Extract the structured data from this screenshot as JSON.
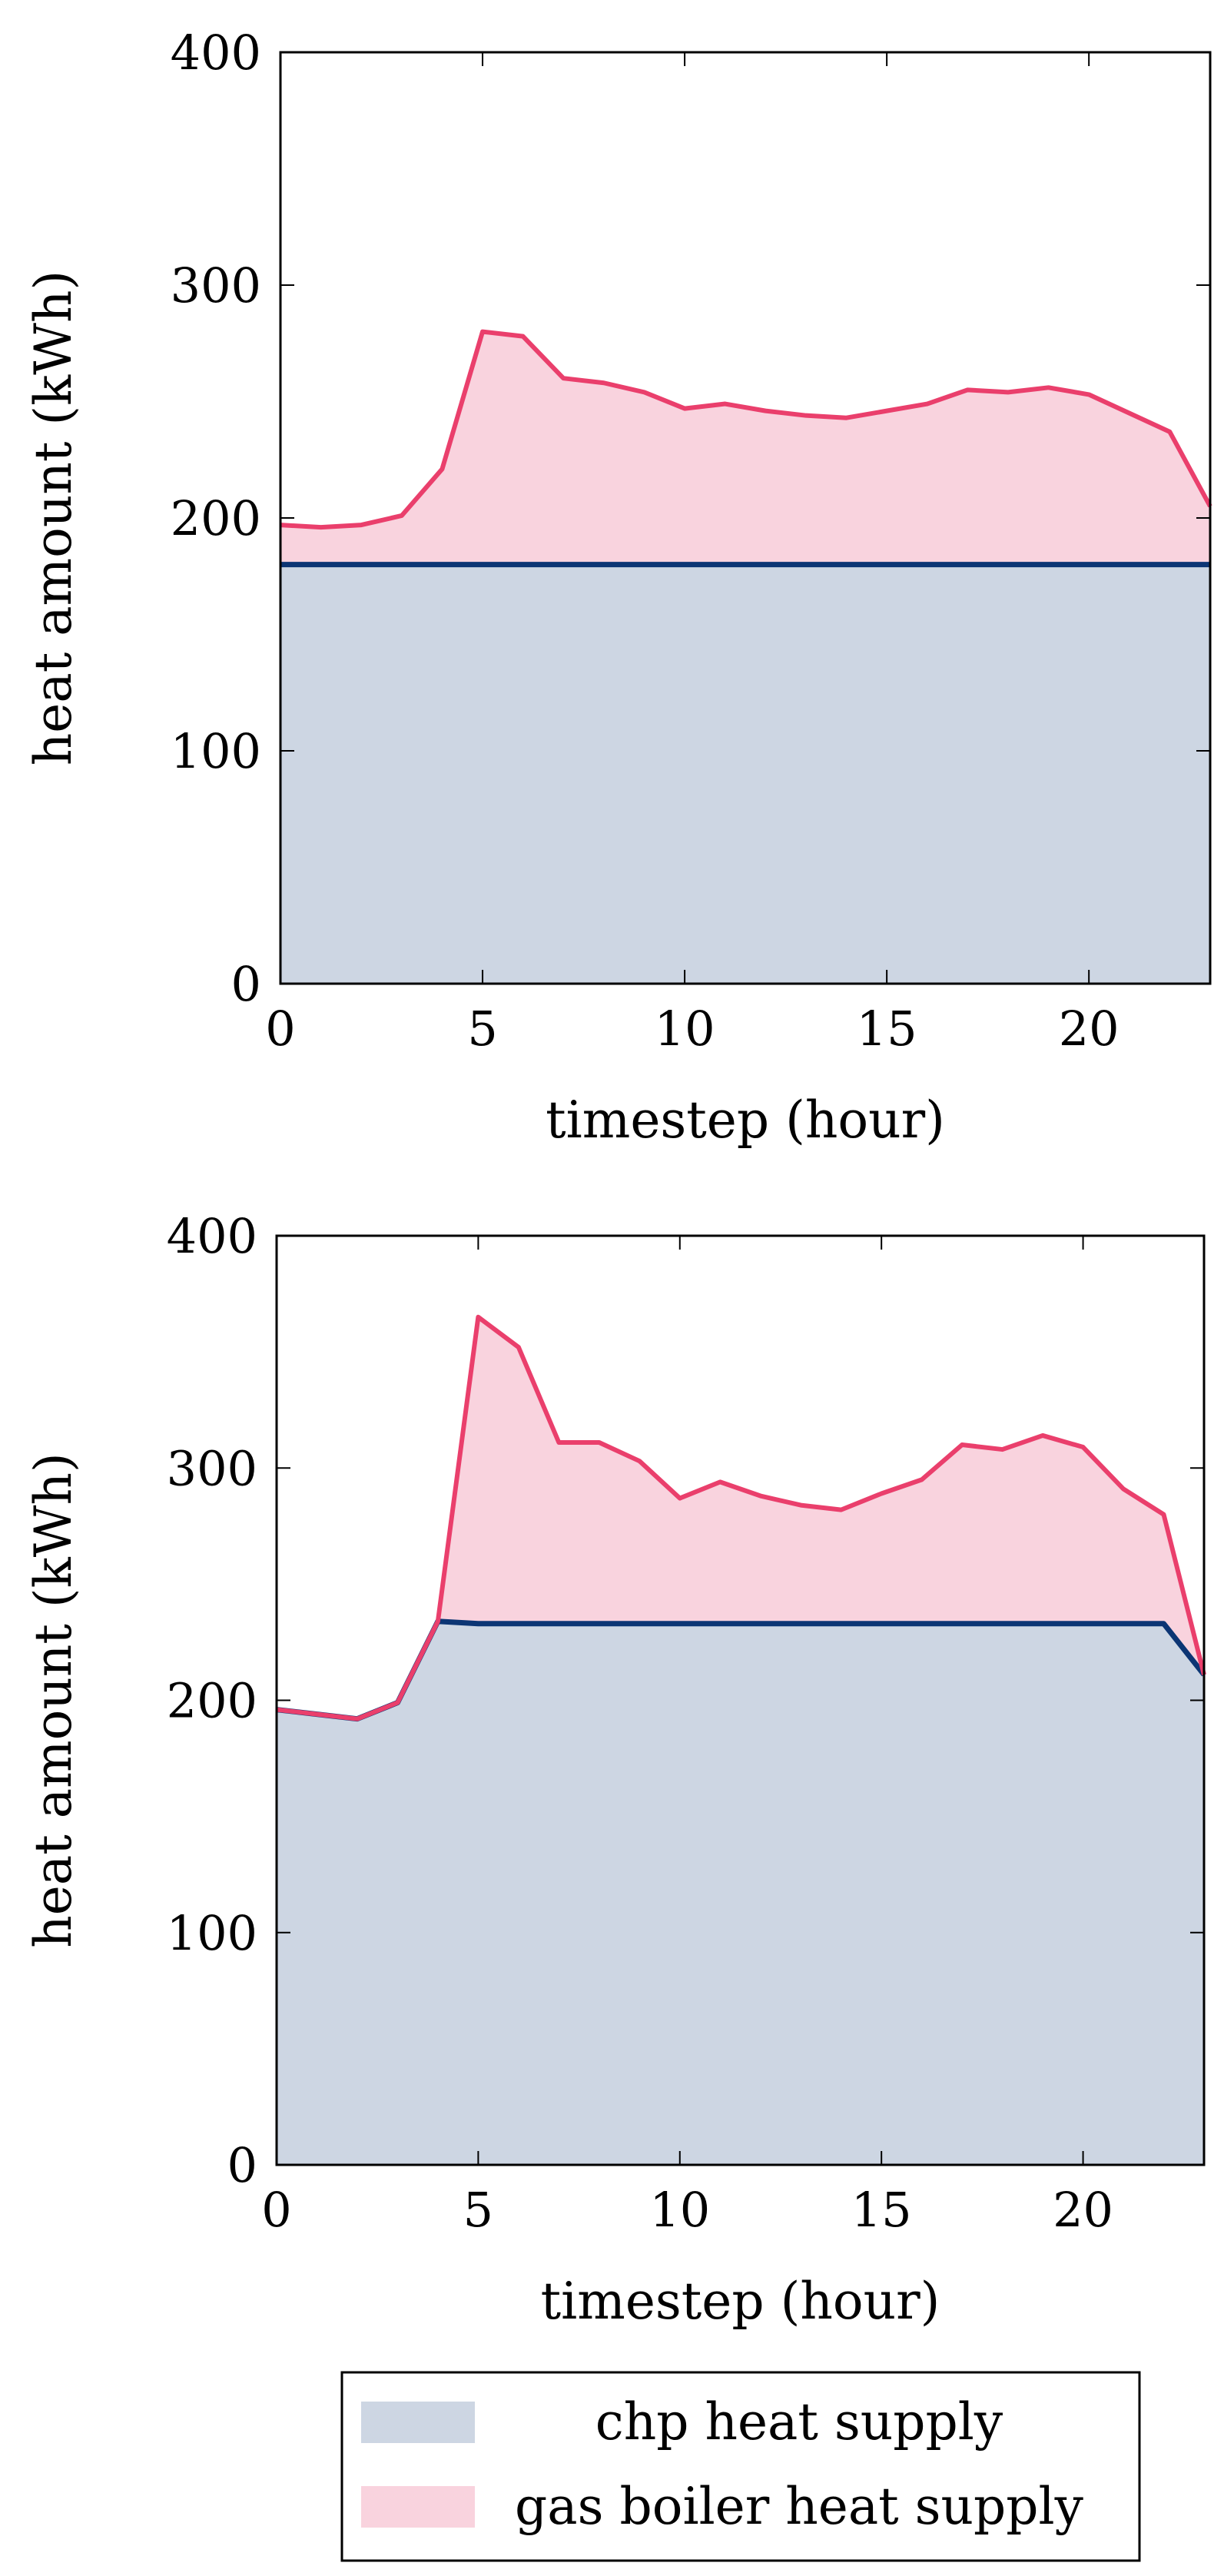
{
  "chart_data": [
    {
      "type": "area",
      "stacked": true,
      "xlabel": "timestep (hour)",
      "ylabel": "heat amount (kWh)",
      "xlim": [
        0,
        23
      ],
      "ylim": [
        0,
        400
      ],
      "xticks": [
        0,
        5,
        10,
        15,
        20
      ],
      "yticks": [
        0,
        100,
        200,
        300,
        400
      ],
      "x": [
        0,
        1,
        2,
        3,
        4,
        5,
        6,
        7,
        8,
        9,
        10,
        11,
        12,
        13,
        14,
        15,
        16,
        17,
        18,
        19,
        20,
        21,
        22,
        23
      ],
      "series": [
        {
          "name": "chp heat supply",
          "color": "#0c3574",
          "fill": "#cdd6e3",
          "values": [
            180,
            180,
            180,
            180,
            180,
            180,
            180,
            180,
            180,
            180,
            180,
            180,
            180,
            180,
            180,
            180,
            180,
            180,
            180,
            180,
            180,
            180,
            180,
            180
          ]
        },
        {
          "name": "gas boiler heat supply",
          "color": "#ea3f6c",
          "fill": "#f9d3de",
          "values": [
            17,
            16,
            17,
            21,
            41,
            100,
            98,
            80,
            78,
            74,
            67,
            69,
            66,
            64,
            63,
            66,
            69,
            75,
            74,
            76,
            73,
            65,
            57,
            25
          ]
        }
      ]
    },
    {
      "type": "area",
      "stacked": true,
      "xlabel": "timestep (hour)",
      "ylabel": "heat amount (kWh)",
      "xlim": [
        0,
        23
      ],
      "ylim": [
        0,
        400
      ],
      "xticks": [
        0,
        5,
        10,
        15,
        20
      ],
      "yticks": [
        0,
        100,
        200,
        300,
        400
      ],
      "x": [
        0,
        1,
        2,
        3,
        4,
        5,
        6,
        7,
        8,
        9,
        10,
        11,
        12,
        13,
        14,
        15,
        16,
        17,
        18,
        19,
        20,
        21,
        22,
        23
      ],
      "series": [
        {
          "name": "chp heat supply",
          "color": "#0c3574",
          "fill": "#cdd6e3",
          "values": [
            196,
            194,
            192,
            199,
            234,
            233,
            233,
            233,
            233,
            233,
            233,
            233,
            233,
            233,
            233,
            233,
            233,
            233,
            233,
            233,
            233,
            233,
            233,
            211
          ]
        },
        {
          "name": "gas boiler heat supply",
          "color": "#ea3f6c",
          "fill": "#f9d3de",
          "values": [
            0,
            0,
            0,
            0,
            0,
            132,
            119,
            78,
            78,
            70,
            54,
            61,
            55,
            51,
            49,
            56,
            62,
            77,
            75,
            81,
            76,
            58,
            47,
            0
          ]
        }
      ]
    }
  ],
  "legend": {
    "placement": "bottom",
    "items": [
      {
        "label": "chp heat supply",
        "fill": "#cdd6e3"
      },
      {
        "label": "gas boiler heat supply",
        "fill": "#f9d3de"
      }
    ]
  }
}
